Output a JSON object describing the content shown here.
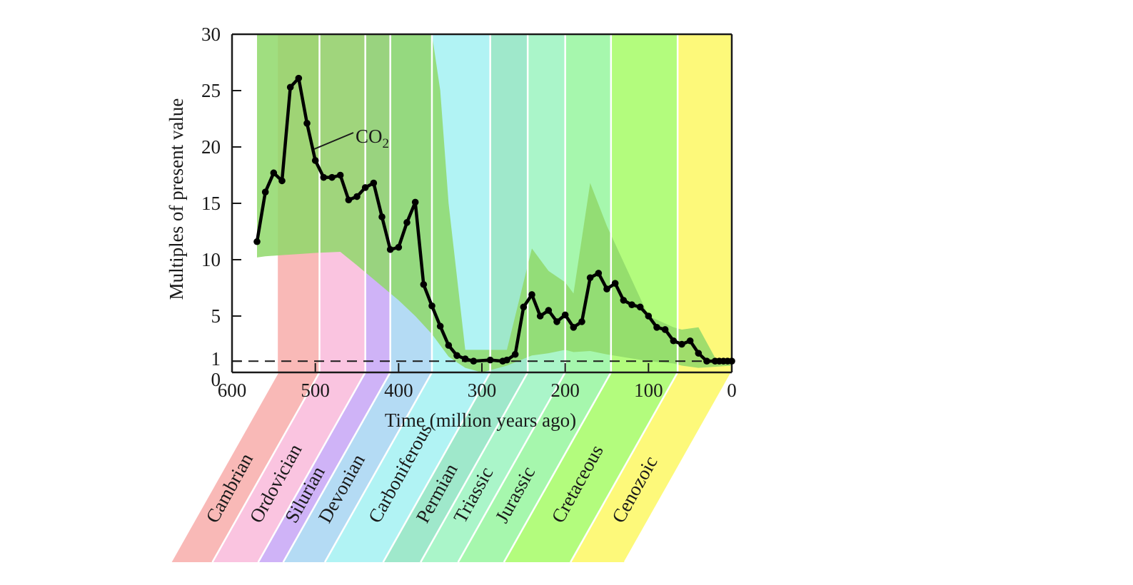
{
  "chart_data": {
    "type": "line",
    "title": "",
    "xlabel": "Time (million years ago)",
    "ylabel": "Multiples of present value",
    "xlim": [
      600,
      0
    ],
    "ylim": [
      0,
      30
    ],
    "x_ticks": [
      600,
      500,
      400,
      300,
      200,
      100,
      0
    ],
    "x_tick_labels": [
      "600",
      "500",
      "400",
      "300",
      "200",
      "100",
      "0"
    ],
    "y_ticks": [
      0,
      1,
      5,
      10,
      15,
      20,
      25,
      30
    ],
    "y_tick_labels": [
      "0",
      "1",
      "5",
      "10",
      "15",
      "20",
      "25",
      "30"
    ],
    "grid": false,
    "reference_line": {
      "y": 1,
      "style": "dashed",
      "meaning": "present value"
    },
    "series": [
      {
        "name": "CO2",
        "label_main": "CO",
        "label_sub": "2",
        "color": "#000000",
        "x": [
          570,
          560,
          550,
          540,
          530,
          520,
          510,
          500,
          490,
          480,
          470,
          460,
          450,
          440,
          430,
          420,
          410,
          400,
          390,
          380,
          370,
          360,
          350,
          340,
          330,
          320,
          310,
          290,
          275,
          270,
          260,
          250,
          240,
          230,
          220,
          210,
          200,
          190,
          180,
          170,
          160,
          150,
          140,
          130,
          120,
          110,
          100,
          90,
          80,
          70,
          60,
          50,
          40,
          30,
          20,
          15,
          10,
          5,
          0
        ],
        "y": [
          11.6,
          16.0,
          17.7,
          17.0,
          25.3,
          26.1,
          22.1,
          18.8,
          17.3,
          17.3,
          17.5,
          15.3,
          15.6,
          16.4,
          16.8,
          13.8,
          10.9,
          11.1,
          13.3,
          15.1,
          7.8,
          5.9,
          4.1,
          2.4,
          1.5,
          1.2,
          1.0,
          1.1,
          1.0,
          1.1,
          1.6,
          5.8,
          6.9,
          5.0,
          5.5,
          4.5,
          5.1,
          4.0,
          4.5,
          8.4,
          8.8,
          7.4,
          7.9,
          6.4,
          6.0,
          5.8,
          5.0,
          4.0,
          3.8,
          2.8,
          2.5,
          2.8,
          1.7,
          1.0,
          1.0,
          1.0,
          1.0,
          1.0,
          1.0
        ]
      }
    ],
    "uncertainty_band": {
      "color": "#8fd86a",
      "x": [
        570,
        560,
        540,
        520,
        500,
        470,
        450,
        400,
        380,
        360,
        350,
        340,
        320,
        300,
        290,
        270,
        260,
        240,
        220,
        200,
        190,
        170,
        150,
        100,
        70,
        60,
        40,
        20,
        0
      ],
      "upper": [
        30,
        30,
        30,
        30,
        30,
        30,
        30,
        30,
        30,
        30,
        25,
        15,
        2,
        2,
        2,
        2,
        5,
        11,
        9,
        8,
        7,
        16.8,
        13,
        5,
        4,
        3.8,
        4,
        1.3,
        1.0
      ],
      "lower": [
        10.2,
        10.3,
        10.4,
        10.5,
        10.6,
        10.7,
        9.5,
        6.4,
        5.0,
        3.4,
        2.4,
        1.4,
        0.4,
        0.0,
        0.2,
        0.6,
        0.9,
        1.5,
        1.7,
        2.0,
        1.8,
        1.9,
        1.6,
        1.0,
        0.8,
        0.6,
        0.4,
        0.5,
        0.6
      ]
    },
    "periods": [
      {
        "name": "Cambrian",
        "start": 545,
        "end": 495,
        "color": "#f9b9b7"
      },
      {
        "name": "Ordovician",
        "start": 495,
        "end": 440,
        "color": "#fac4e0"
      },
      {
        "name": "Silurian",
        "start": 440,
        "end": 410,
        "color": "#cfb3f7"
      },
      {
        "name": "Devonian",
        "start": 410,
        "end": 360,
        "color": "#b4dbf4"
      },
      {
        "name": "Carboniferous",
        "start": 360,
        "end": 290,
        "color": "#b1f3f4"
      },
      {
        "name": "Permian",
        "start": 290,
        "end": 245,
        "color": "#9fe8cb"
      },
      {
        "name": "Triassic",
        "start": 245,
        "end": 200,
        "color": "#aaf5c9"
      },
      {
        "name": "Jurassic",
        "start": 200,
        "end": 145,
        "color": "#a6f7ad"
      },
      {
        "name": "Cretaceous",
        "start": 145,
        "end": 65,
        "color": "#b3fc7d"
      },
      {
        "name": "Cenozoic",
        "start": 65,
        "end": 0,
        "color": "#fdf97a"
      }
    ],
    "annotations": [
      {
        "text": "CO2",
        "points_to_series": "CO2",
        "anchor_x": 505,
        "anchor_y": 20
      }
    ],
    "legend": "none"
  }
}
